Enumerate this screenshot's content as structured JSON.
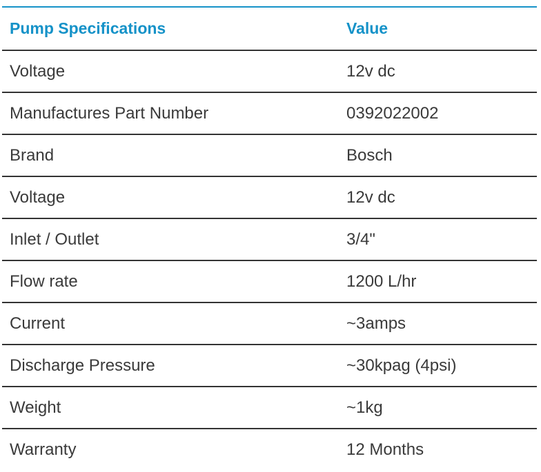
{
  "table": {
    "headers": {
      "name": "Pump Specifications",
      "value": "Value"
    },
    "rows": [
      {
        "name": "Voltage",
        "value": "12v dc"
      },
      {
        "name": "Manufactures Part Number",
        "value": "0392022002"
      },
      {
        "name": "Brand",
        "value": "Bosch"
      },
      {
        "name": "Voltage",
        "value": "12v dc"
      },
      {
        "name": "Inlet / Outlet",
        "value": "3/4\""
      },
      {
        "name": "Flow rate",
        "value": "1200 L/hr"
      },
      {
        "name": "Current",
        "value": "~3amps"
      },
      {
        "name": "Discharge Pressure",
        "value": "~30kpag (4psi)"
      },
      {
        "name": "Weight",
        "value": "~1kg"
      },
      {
        "name": "Warranty",
        "value": "12 Months"
      }
    ]
  },
  "colors": {
    "accent": "#1592c8",
    "text": "#3a3a3a",
    "divider": "#333333"
  }
}
